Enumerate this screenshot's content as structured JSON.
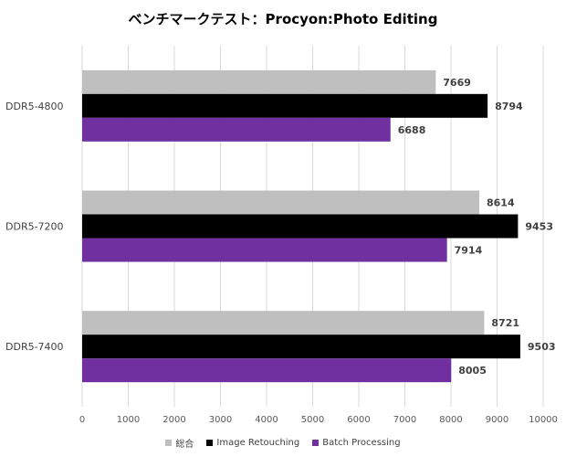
{
  "chart_data": {
    "type": "bar",
    "orientation": "horizontal",
    "title": "ベンチマークテスト：Procyon:Photo Editing",
    "categories": [
      "DDR5-4800",
      "DDR5-7200",
      "DDR5-7400"
    ],
    "series": [
      {
        "name": "総合",
        "color": "#bfbfbf",
        "values": [
          7669,
          8614,
          8721
        ]
      },
      {
        "name": "Image Retouching",
        "color": "#000000",
        "values": [
          8794,
          9453,
          9503
        ]
      },
      {
        "name": "Batch Processing",
        "color": "#7030a0",
        "values": [
          6688,
          7914,
          8005
        ]
      }
    ],
    "xlim": [
      0,
      10000
    ],
    "xticks": [
      0,
      1000,
      2000,
      3000,
      4000,
      5000,
      6000,
      7000,
      8000,
      9000,
      10000
    ],
    "grid": true,
    "legend_position": "bottom",
    "data_labels": true
  }
}
